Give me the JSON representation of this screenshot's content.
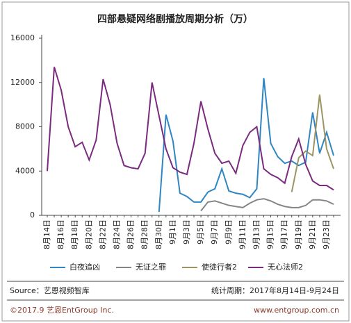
{
  "chart_data": {
    "type": "line",
    "title": "四部悬疑网络剧播放周期分析（万）",
    "categories": [
      "8月14日",
      null,
      "8月16日",
      null,
      "8月18日",
      null,
      "8月20日",
      null,
      "8月22日",
      null,
      "8月24日",
      null,
      "8月26日",
      null,
      "8月28日",
      null,
      "8月30日",
      null,
      "9月1日",
      null,
      "9月3日",
      null,
      "9月5日",
      null,
      "9月7日",
      null,
      "9月9日",
      null,
      "9月11日",
      null,
      "9月13日",
      null,
      "9月15日",
      null,
      "9月17日",
      null,
      "9月19日",
      null,
      "9月21日",
      null,
      "9月23日",
      null
    ],
    "series": [
      {
        "name": "白夜追凶",
        "color": "#2f86c3",
        "values": [
          null,
          null,
          null,
          null,
          null,
          null,
          null,
          null,
          null,
          null,
          null,
          null,
          null,
          null,
          null,
          null,
          300,
          9100,
          6700,
          2000,
          1700,
          1200,
          1200,
          2100,
          2400,
          4200,
          2200,
          2000,
          1900,
          1600,
          2400,
          12400,
          6500,
          5300,
          4700,
          4900,
          4500,
          4800,
          9300,
          5600,
          7500,
          5400
        ]
      },
      {
        "name": "无证之罪",
        "color": "#858585",
        "values": [
          null,
          null,
          null,
          null,
          null,
          null,
          null,
          null,
          null,
          null,
          null,
          null,
          null,
          null,
          null,
          null,
          null,
          null,
          null,
          null,
          null,
          null,
          400,
          1200,
          1300,
          1100,
          900,
          800,
          700,
          1100,
          1400,
          1500,
          1300,
          1000,
          800,
          700,
          700,
          900,
          1400,
          1400,
          1300,
          1000
        ]
      },
      {
        "name": "使徒行者2",
        "color": "#9c9563",
        "values": [
          null,
          null,
          null,
          null,
          null,
          null,
          null,
          null,
          null,
          null,
          null,
          null,
          null,
          null,
          null,
          null,
          null,
          null,
          null,
          null,
          null,
          null,
          null,
          null,
          null,
          null,
          null,
          null,
          null,
          null,
          null,
          null,
          null,
          null,
          null,
          2100,
          5200,
          5800,
          5400,
          10900,
          6000,
          4200
        ]
      },
      {
        "name": "无心法师2",
        "color": "#7a2a7f",
        "values": [
          4000,
          13400,
          11300,
          8000,
          6200,
          6600,
          5000,
          6800,
          12300,
          10000,
          6500,
          4500,
          4300,
          4200,
          5600,
          12000,
          9000,
          6000,
          4300,
          3900,
          3700,
          6500,
          10300,
          7800,
          5600,
          4700,
          4900,
          3800,
          6300,
          7500,
          8000,
          4200,
          3700,
          3400,
          2900,
          5300,
          6900,
          4600,
          3100,
          2700,
          2700,
          2300
        ]
      }
    ],
    "ylim": [
      0,
      16000
    ],
    "yticks": [
      0,
      4000,
      8000,
      12000,
      16000
    ],
    "source": "Source：艺恩视频智库",
    "period": "统计周期：2017年8月14日-9月24日",
    "copyright": "©2017.9  艺恩EntGroup Inc.",
    "website": "www.entgroup.com.cn"
  }
}
